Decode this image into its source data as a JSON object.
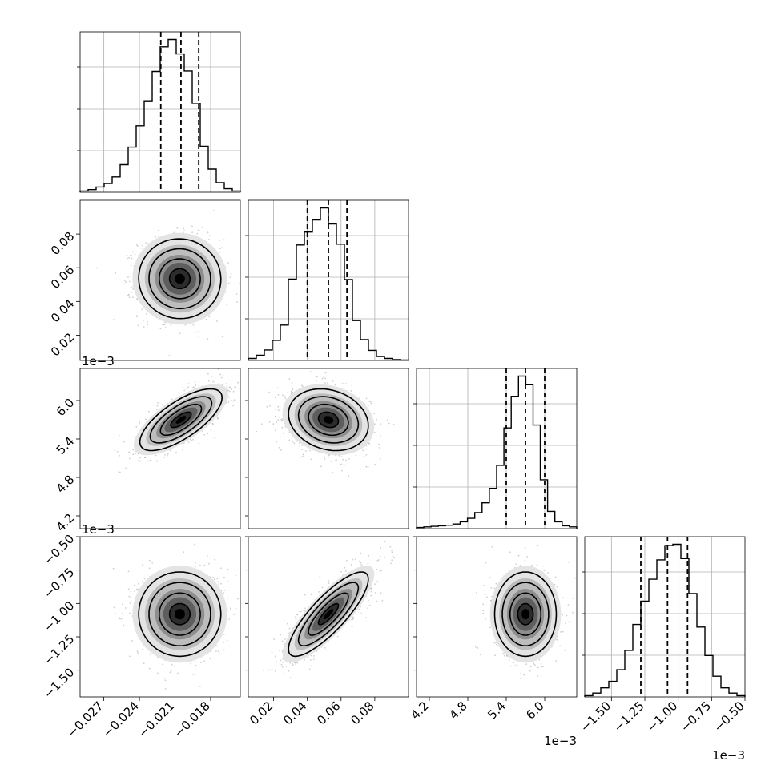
{
  "chart_data": {
    "type": "corner",
    "tick_labels": {
      "x0": [
        "−0.027",
        "−0.024",
        "−0.021",
        "−0.018"
      ],
      "x1": [
        "0.02",
        "0.04",
        "0.06",
        "0.08"
      ],
      "x2": [
        "4.2",
        "4.8",
        "5.4",
        "6.0"
      ],
      "x3": [
        "−1.50",
        "−1.25",
        "−1.00",
        "−0.75",
        "−0.50"
      ],
      "y1": [
        "0.02",
        "0.04",
        "0.06",
        "0.08"
      ],
      "y2": [
        "4.2",
        "4.8",
        "5.4",
        "6.0"
      ],
      "y3": [
        "−1.50",
        "−1.25",
        "−1.00",
        "−0.75",
        "−0.50"
      ]
    },
    "offset_labels": {
      "x2": "1e−3",
      "x3": "1e−3",
      "y2": "1e−3",
      "y3": "1e−3"
    },
    "parameters": [
      {
        "range": [
          -0.029,
          -0.0155
        ],
        "ticks": [
          -0.027,
          -0.024,
          -0.021,
          -0.018
        ],
        "quantiles": [
          -0.0222,
          -0.0205,
          -0.019
        ],
        "hist": [
          0.3,
          0.6,
          1.2,
          2,
          3.5,
          6.3,
          10.3,
          15.2,
          20.8,
          27.5,
          33.1,
          34.8,
          31.5,
          27.6,
          20.3,
          10.5,
          5.3,
          2.2,
          0.8,
          0.3
        ]
      },
      {
        "range": [
          0.005,
          0.1
        ],
        "ticks": [
          0.02,
          0.04,
          0.06,
          0.08
        ],
        "quantiles": [
          0.04,
          0.0525,
          0.0635
        ],
        "hist": [
          0.5,
          1.3,
          2.6,
          5.0,
          8.8,
          20.2,
          28.7,
          31.9,
          34.9,
          37.9,
          33.9,
          28.9,
          20.1,
          9.9,
          5.2,
          2.5,
          1.0,
          0.5,
          0.2,
          0.1
        ]
      },
      {
        "range": [
          0.004,
          0.0065
        ],
        "ticks": [
          0.0042,
          0.0048,
          0.0054,
          0.006
        ],
        "quantiles": [
          0.0054,
          0.0057,
          0.006
        ],
        "hist": [
          0.2,
          0.3,
          0.4,
          0.5,
          0.6,
          0.8,
          1.2,
          1.8,
          2.8,
          4.5,
          7.0,
          11.0,
          17.5,
          23.0,
          26.5,
          25.0,
          18.0,
          8.5,
          3.0,
          1.2,
          0.5,
          0.3
        ]
      },
      {
        "range": [
          -0.0017,
          -0.0005
        ],
        "ticks": [
          -0.0015,
          -0.00125,
          -0.001,
          -0.00075,
          -0.0005
        ],
        "quantiles": [
          -0.00128,
          -0.00108,
          -0.00093
        ],
        "hist": [
          0.5,
          1.5,
          3.5,
          6.0,
          10.5,
          18.0,
          28.0,
          37.0,
          45.5,
          53.0,
          58.5,
          59.0,
          53.5,
          40.0,
          27.0,
          16.0,
          8.0,
          3.5,
          1.5,
          0.5
        ]
      }
    ],
    "pairs": [
      {
        "row": 1,
        "col": 0,
        "mean": [
          -0.0206,
          0.0535
        ],
        "cov": [
          [
            3e-06,
            -3e-07
          ],
          [
            -3e-07,
            0.00014
          ]
        ]
      },
      {
        "row": 2,
        "col": 0,
        "mean": [
          -0.0205,
          0.0057
        ],
        "cov": [
          [
            3e-06,
            3e-07
          ],
          [
            3e-07,
            5.8e-08
          ]
        ]
      },
      {
        "row": 2,
        "col": 1,
        "mean": [
          0.0525,
          0.0057
        ],
        "cov": [
          [
            0.00014,
            -5.5e-07
          ],
          [
            -5.5e-07,
            5.8e-08
          ]
        ]
      },
      {
        "row": 3,
        "col": 0,
        "mean": [
          -0.0206,
          -0.00108
        ],
        "cov": [
          [
            3e-06,
            0.0
          ],
          [
            0.0,
            2.5e-08
          ]
        ]
      },
      {
        "row": 3,
        "col": 1,
        "mean": [
          0.0525,
          -0.00108
        ],
        "cov": [
          [
            0.00014,
            1.55e-06
          ],
          [
            1.55e-06,
            2.5e-08
          ]
        ]
      },
      {
        "row": 3,
        "col": 2,
        "mean": [
          0.0057,
          -0.00108
        ],
        "cov": [
          [
            5.8e-08,
            -2.4e-11
          ],
          [
            -2.4e-11,
            2.5e-08
          ]
        ]
      }
    ],
    "grid": true
  }
}
